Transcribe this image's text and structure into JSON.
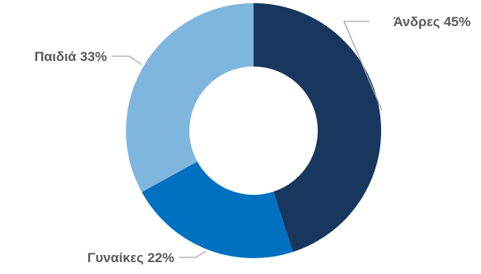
{
  "chart_data": {
    "type": "pie",
    "style": "donut",
    "categories": [
      "Άνδρες",
      "Γυναίκες",
      "Παιδιά"
    ],
    "values": [
      45,
      22,
      33
    ],
    "unit": "%",
    "data_labels": [
      "Άνδρες 45%",
      "Γυναίκες 22%",
      "Παιδιά 33%"
    ],
    "colors": [
      "#17375e",
      "#0070c0",
      "#7fb6dd"
    ],
    "start": "12 o'clock",
    "direction": "clockwise",
    "legend": "none",
    "label_color": "#595959",
    "leader_line_color": "#a6a6a6"
  }
}
